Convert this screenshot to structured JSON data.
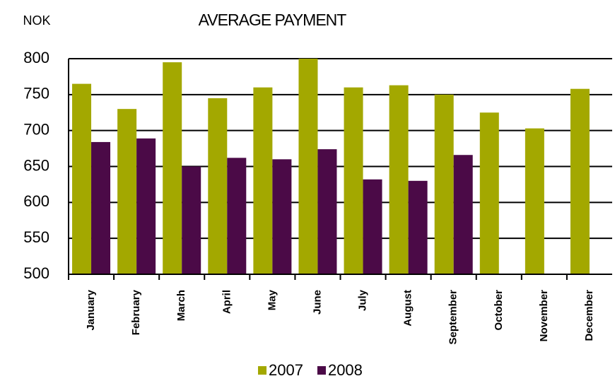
{
  "chart_data": {
    "type": "bar",
    "title": "AVERAGE PAYMENT",
    "y_label": "NOK",
    "categories": [
      "January",
      "February",
      "March",
      "April",
      "May",
      "June",
      "July",
      "August",
      "September",
      "October",
      "November",
      "December"
    ],
    "series": [
      {
        "name": "2007",
        "color": "#a3a800",
        "values": [
          765,
          730,
          795,
          745,
          760,
          800,
          760,
          763,
          750,
          725,
          703,
          758
        ]
      },
      {
        "name": "2008",
        "color": "#4b0a47",
        "values": [
          684,
          689,
          650,
          662,
          660,
          674,
          632,
          630,
          666,
          null,
          null,
          null
        ]
      }
    ],
    "ylim": [
      500,
      800
    ],
    "yticks": [
      500,
      550,
      600,
      650,
      700,
      750,
      800
    ],
    "grid": true,
    "legend": "bottom"
  }
}
